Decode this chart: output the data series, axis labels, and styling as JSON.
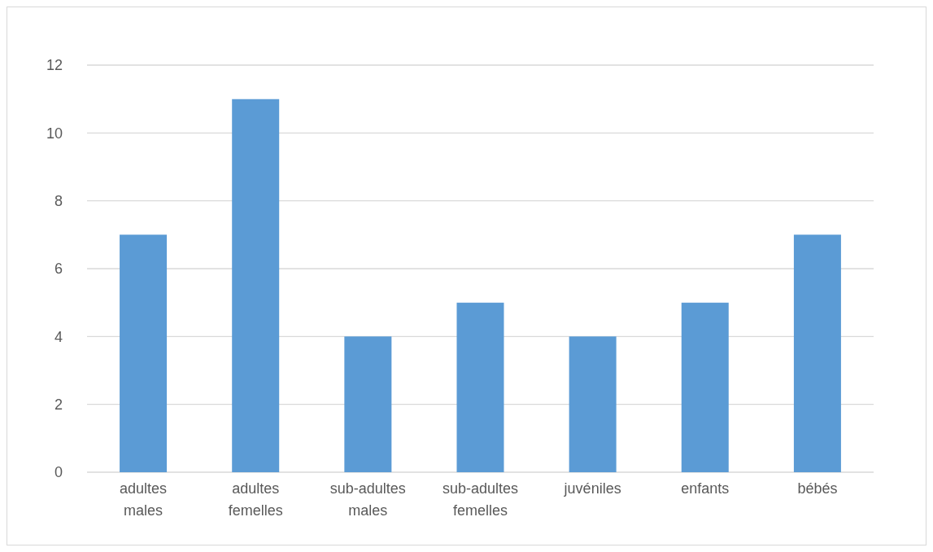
{
  "chart_data": {
    "type": "bar",
    "categories": [
      "adultes males",
      "adultes femelles",
      "sub-adultes males",
      "sub-adultes femelles",
      "juvéniles",
      "enfants",
      "bébés"
    ],
    "values": [
      7,
      11,
      4,
      5,
      4,
      5,
      7
    ],
    "color": "#5b9bd5",
    "ylim": [
      0,
      12
    ],
    "yticks": [
      0,
      2,
      4,
      6,
      8,
      10,
      12
    ],
    "grid": "y"
  }
}
